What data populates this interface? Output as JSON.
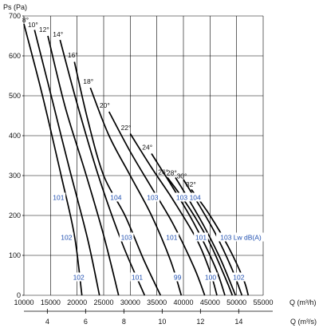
{
  "chart_data": {
    "type": "line",
    "title": "",
    "ylabel": "Ps  (Pa)",
    "xlabel": "Q (m³/h)",
    "x2label": "Q (m³/s)",
    "xlim": [
      10000,
      55000
    ],
    "ylim": [
      0,
      700
    ],
    "x2lim": [
      2.7778,
      15.2778
    ],
    "x_ticks": [
      "10000",
      "15000",
      "20000",
      "25000",
      "30000",
      "35000",
      "40000",
      "45000",
      "50000",
      "55000"
    ],
    "y_ticks": [
      "0",
      "100",
      "200",
      "300",
      "400",
      "500",
      "600",
      "700"
    ],
    "x2_ticks": [
      "4",
      "6",
      "8",
      "10",
      "12",
      "14"
    ],
    "x2_tick_values": [
      4,
      6,
      8,
      10,
      12,
      14
    ],
    "grid": true,
    "colors": {
      "curve": "#000000",
      "grid": "#000000",
      "noise_label": "#1f4fb0",
      "text": "#111111"
    },
    "series": [
      {
        "name": "8°",
        "x": [
          10000,
          13500,
          17000,
          19500,
          20900
        ],
        "y": [
          680,
          500,
          300,
          150,
          0
        ]
      },
      {
        "name": "10°",
        "x": [
          12000,
          15500,
          18500,
          22000,
          24200
        ],
        "y": [
          665,
          480,
          320,
          140,
          0
        ]
      },
      {
        "name": "12°",
        "x": [
          14500,
          17800,
          21500,
          25000,
          27800
        ],
        "y": [
          650,
          470,
          310,
          150,
          0
        ]
      },
      {
        "name": "14°",
        "x": [
          16800,
          20000,
          24000,
          28500,
          32700
        ],
        "y": [
          640,
          480,
          300,
          130,
          0
        ]
      },
      {
        "name": "16°",
        "x": [
          19500,
          22000,
          25000,
          29000,
          32500,
          35700
        ],
        "y": [
          585,
          440,
          300,
          200,
          90,
          0
        ]
      },
      {
        "name": "18°",
        "x": [
          22500,
          26000,
          30000,
          34000,
          37500,
          39600
        ],
        "y": [
          520,
          400,
          300,
          200,
          90,
          0
        ]
      },
      {
        "name": "20°",
        "x": [
          26000,
          30000,
          34000,
          38000,
          42000,
          44000
        ],
        "y": [
          460,
          360,
          270,
          180,
          70,
          0
        ]
      },
      {
        "name": "22°",
        "x": [
          30000,
          34000,
          38000,
          42500,
          45000,
          46300
        ],
        "y": [
          405,
          320,
          240,
          140,
          60,
          0
        ]
      },
      {
        "name": "24°",
        "x": [
          34000,
          38000,
          42000,
          46000,
          47800
        ],
        "y": [
          355,
          270,
          180,
          70,
          0
        ]
      },
      {
        "name": "26°",
        "x": [
          37000,
          39500,
          42000,
          45000,
          48000,
          49200
        ],
        "y": [
          295,
          250,
          200,
          130,
          40,
          0
        ]
      },
      {
        "name": "28°",
        "x": [
          38500,
          41000,
          44000,
          47000,
          49800
        ],
        "y": [
          295,
          240,
          170,
          90,
          0
        ]
      },
      {
        "name": "30°",
        "x": [
          40000,
          43000,
          46000,
          49000,
          51000
        ],
        "y": [
          290,
          225,
          155,
          70,
          0
        ]
      },
      {
        "name": "32°",
        "x": [
          41500,
          45000,
          48500,
          51300,
          52200
        ],
        "y": [
          265,
          200,
          120,
          40,
          0
        ]
      }
    ],
    "angle_labels": [
      {
        "text": "8°",
        "x": 10300,
        "y": 684
      },
      {
        "text": "10°",
        "x": 11700,
        "y": 672
      },
      {
        "text": "12°",
        "x": 13800,
        "y": 660
      },
      {
        "text": "14°",
        "x": 16400,
        "y": 648
      },
      {
        "text": "16°",
        "x": 19200,
        "y": 596
      },
      {
        "text": "18°",
        "x": 22100,
        "y": 530
      },
      {
        "text": "20°",
        "x": 25200,
        "y": 470
      },
      {
        "text": "22°",
        "x": 29200,
        "y": 414
      },
      {
        "text": "24°",
        "x": 33200,
        "y": 365
      },
      {
        "text": "26°",
        "x": 36200,
        "y": 303
      },
      {
        "text": "28°",
        "x": 37800,
        "y": 301
      },
      {
        "text": "30°",
        "x": 39700,
        "y": 293
      },
      {
        "text": "32°",
        "x": 41400,
        "y": 272
      }
    ],
    "noise_labels": [
      {
        "text": "101",
        "x": 16500,
        "y": 245
      },
      {
        "text": "102",
        "x": 18000,
        "y": 145
      },
      {
        "text": "102",
        "x": 20300,
        "y": 45
      },
      {
        "text": "104",
        "x": 27300,
        "y": 245
      },
      {
        "text": "103",
        "x": 29300,
        "y": 145
      },
      {
        "text": "101",
        "x": 31300,
        "y": 45
      },
      {
        "text": "103",
        "x": 34200,
        "y": 245
      },
      {
        "text": "101",
        "x": 37800,
        "y": 145
      },
      {
        "text": "99",
        "x": 38900,
        "y": 45
      },
      {
        "text": "103",
        "x": 39700,
        "y": 245
      },
      {
        "text": "104",
        "x": 42200,
        "y": 245
      },
      {
        "text": "101",
        "x": 43300,
        "y": 145
      },
      {
        "text": "100",
        "x": 45100,
        "y": 45
      },
      {
        "text": "103 Lw dB(A)",
        "x": 50800,
        "y": 145
      },
      {
        "text": "102",
        "x": 50400,
        "y": 45
      }
    ]
  }
}
